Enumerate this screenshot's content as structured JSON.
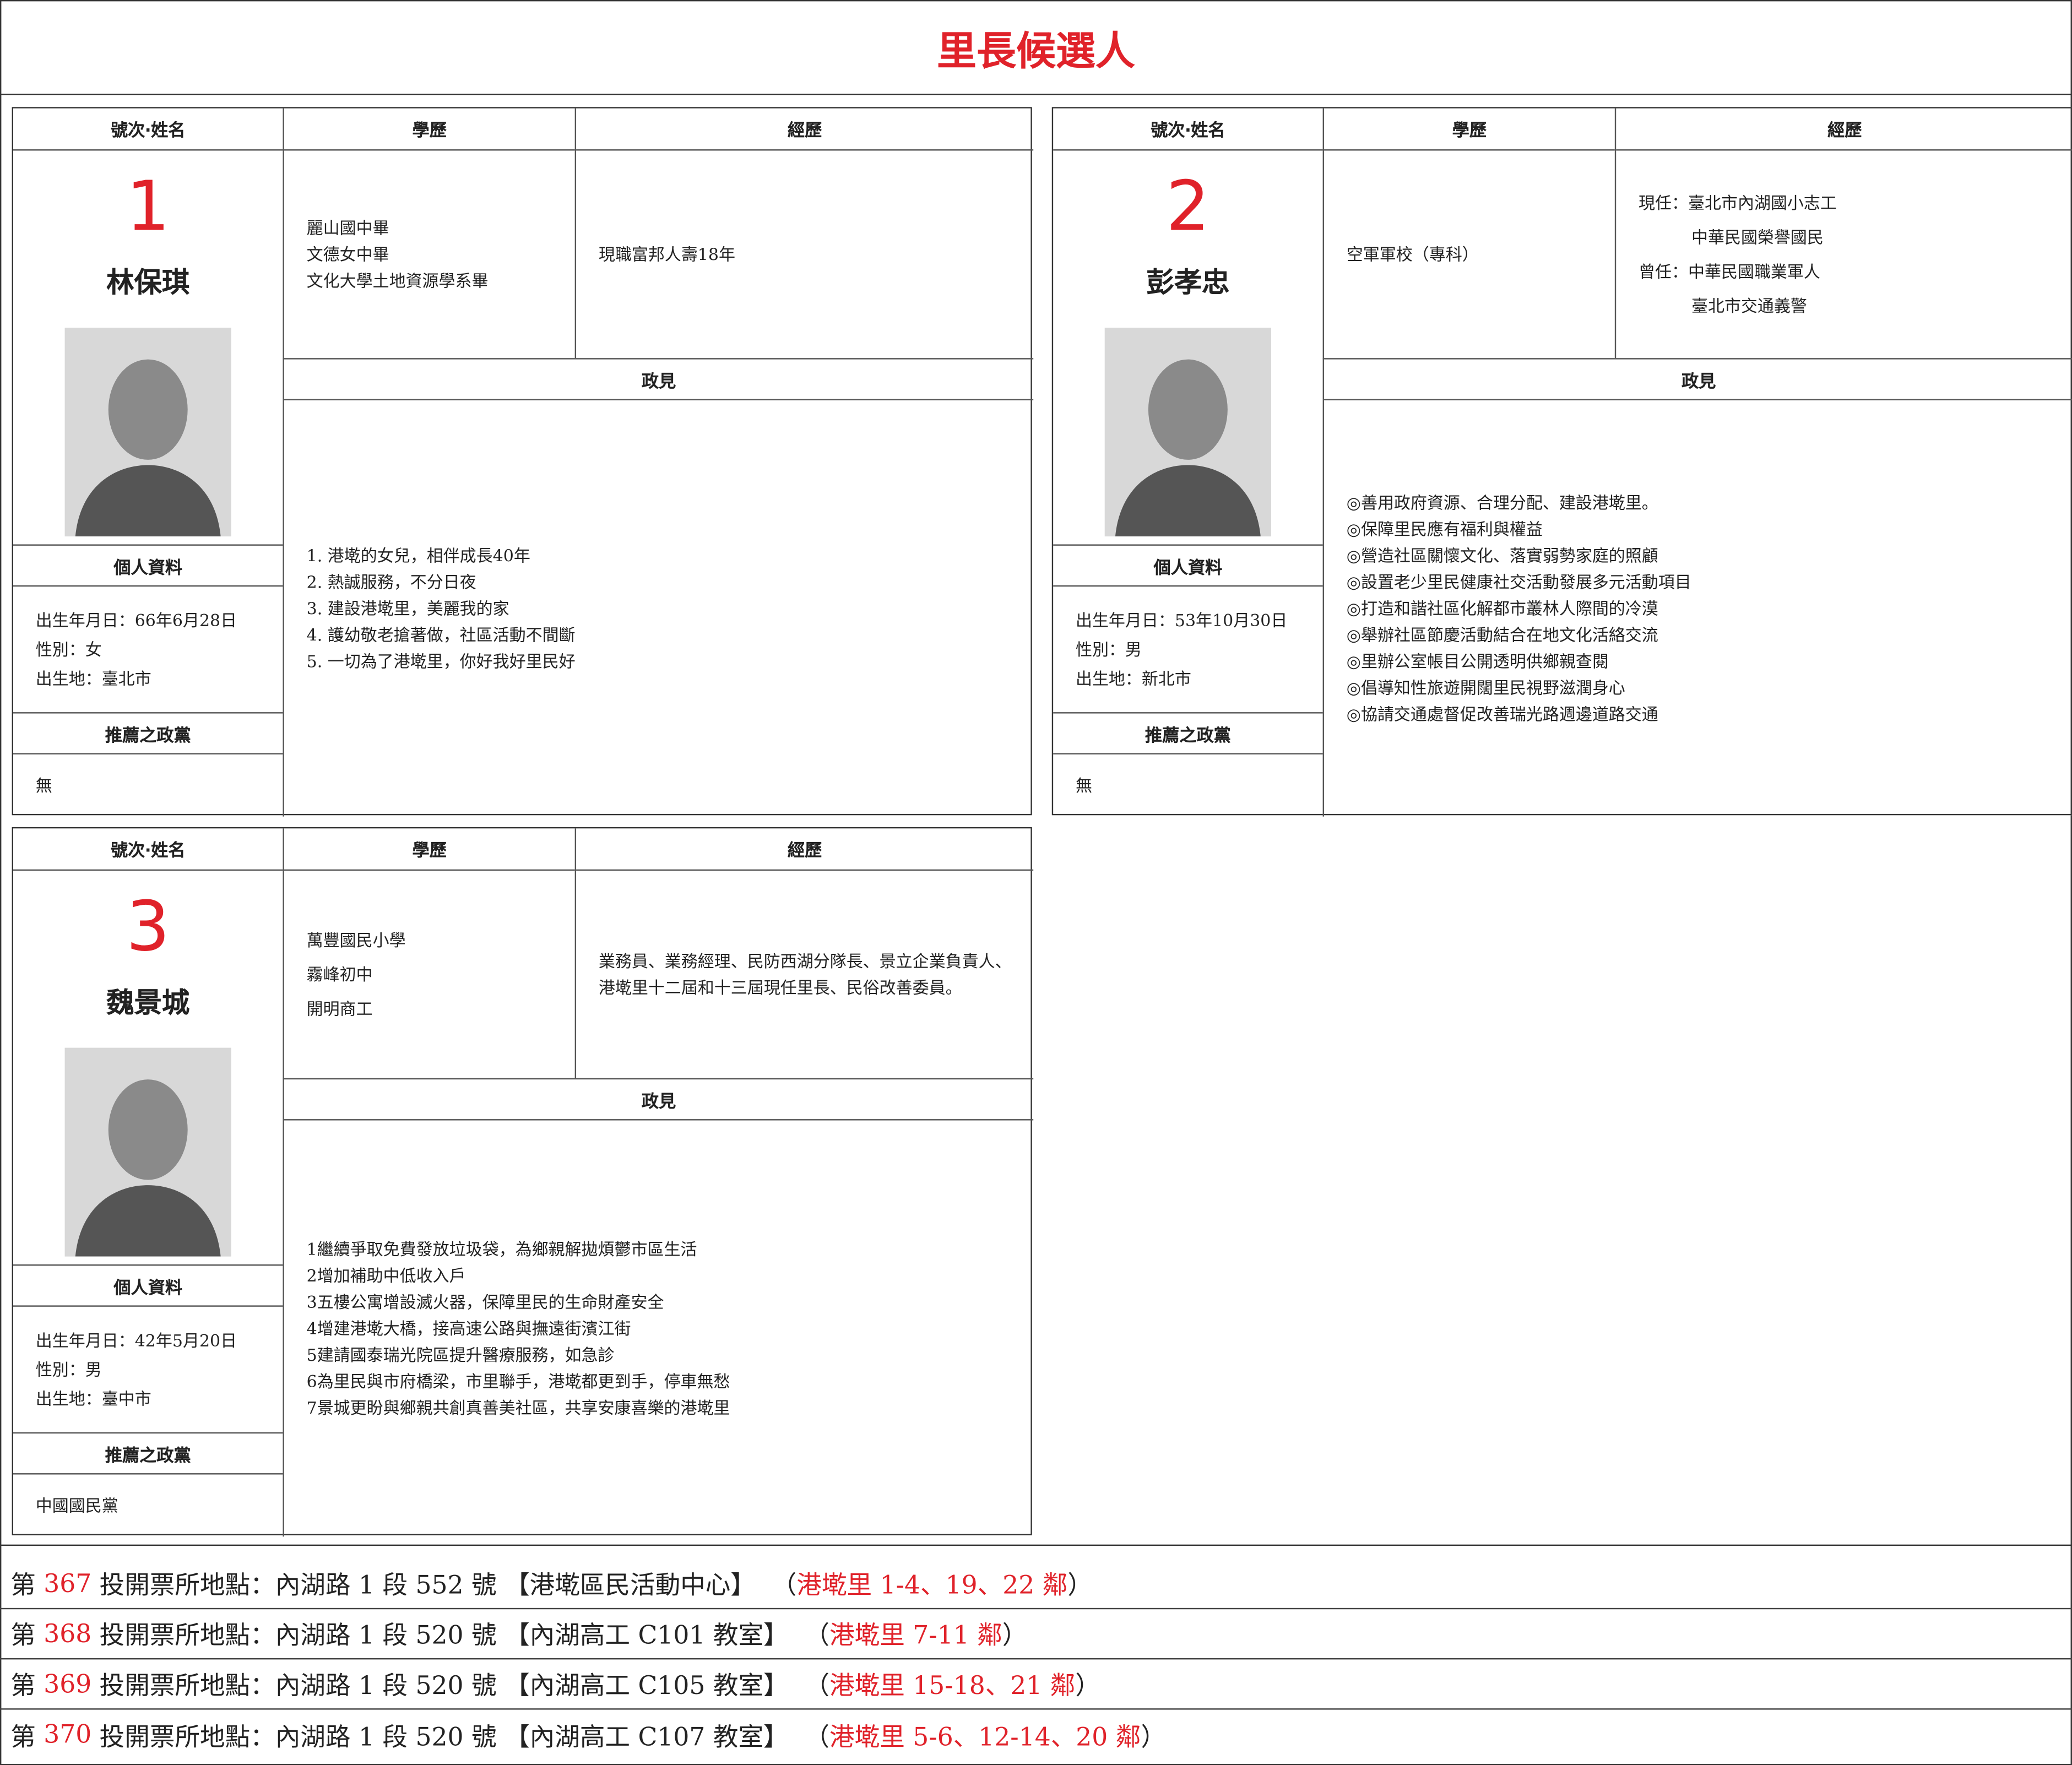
{
  "title": "里長候選人",
  "headers": {
    "number_name": "號次‧姓名",
    "education": "學歷",
    "experience": "經歷",
    "platform": "政見",
    "personal": "個人資料",
    "party": "推薦之政黨"
  },
  "candidates": [
    {
      "number": "1",
      "name": "林保琪",
      "education": [
        "麗山國中畢",
        "文德女中畢",
        "文化大學土地資源學系畢"
      ],
      "experience": [
        "現職富邦人壽18年"
      ],
      "platform": [
        "1. 港墘的女兒，相伴成長40年",
        "2. 熱誠服務，不分日夜",
        "3. 建設港墘里，美麗我的家",
        "4. 護幼敬老搶著做，社區活動不間斷",
        "5. 一切為了港墘里，你好我好里民好"
      ],
      "personal": [
        "出生年月日：66年6月28日",
        "性別：女",
        "出生地：臺北市"
      ],
      "party": "無"
    },
    {
      "number": "2",
      "name": "彭孝忠",
      "education": [
        "空軍軍校（專科）"
      ],
      "experience": [
        "現任：臺北市內湖國小志工",
        "中華民國榮譽國民",
        "曾任：中華民國職業軍人",
        "臺北市交通義警"
      ],
      "platform": [
        "◎善用政府資源、合理分配、建設港墘里。",
        "◎保障里民應有福利與權益",
        "◎營造社區關懷文化、落實弱勢家庭的照顧",
        "◎設置老少里民健康社交活動發展多元活動項目",
        "◎打造和諧社區化解都市叢林人際間的冷漠",
        "◎舉辦社區節慶活動結合在地文化活絡交流",
        "◎里辦公室帳目公開透明供鄉親查閱",
        "◎倡導知性旅遊開闊里民視野滋潤身心",
        "◎協請交通處督促改善瑞光路週邊道路交通"
      ],
      "personal": [
        "出生年月日：53年10月30日",
        "性別：男",
        "出生地：新北市"
      ],
      "party": "無"
    },
    {
      "number": "3",
      "name": "魏景城",
      "education": [
        "萬豐國民小學",
        "霧峰初中",
        "開明商工"
      ],
      "experience": [
        "業務員、業務經理、民防西湖分隊長、景立企業負責人、港墘里十二屆和十三屆現任里長、民俗改善委員。"
      ],
      "platform": [
        "1繼續爭取免費發放垃圾袋，為鄉親解拋煩鬱市區生活",
        "2增加補助中低收入戶",
        "3五樓公寓增設滅火器，保障里民的生命財產安全",
        "4增建港墘大橋，接高速公路與撫遠街濱江街",
        "5建請國泰瑞光院區提升醫療服務，如急診",
        "6為里民與市府橋梁，市里聯手，港墘都更到手，停車無愁",
        "7景城更盼與鄉親共創真善美社區，共享安康喜樂的港墘里"
      ],
      "personal": [
        "出生年月日：42年5月20日",
        "性別：男",
        "出生地：臺中市"
      ],
      "party": "中國國民黨"
    }
  ],
  "polling": [
    {
      "prefix": "第",
      "number": "367",
      "location": "投開票所地點：內湖路 1 段 552 號 【港墘區民活動中心】",
      "open": "（",
      "area": "港墘里 1-4、19、22 鄰",
      "close": "）"
    },
    {
      "prefix": "第",
      "number": "368",
      "location": "投開票所地點：內湖路 1 段 520 號 【內湖高工 C101 教室】",
      "open": "（",
      "area": "港墘里 7-11 鄰",
      "close": "）"
    },
    {
      "prefix": "第",
      "number": "369",
      "location": "投開票所地點：內湖路 1 段 520 號 【內湖高工 C105 教室】",
      "open": "（",
      "area": "港墘里 15-18、21 鄰",
      "close": "）"
    },
    {
      "prefix": "第",
      "number": "370",
      "location": "投開票所地點：內湖路 1 段 520 號 【內湖高工 C107 教室】",
      "open": "（",
      "area": "港墘里 5-6、12-14、20 鄰",
      "close": "）"
    }
  ]
}
